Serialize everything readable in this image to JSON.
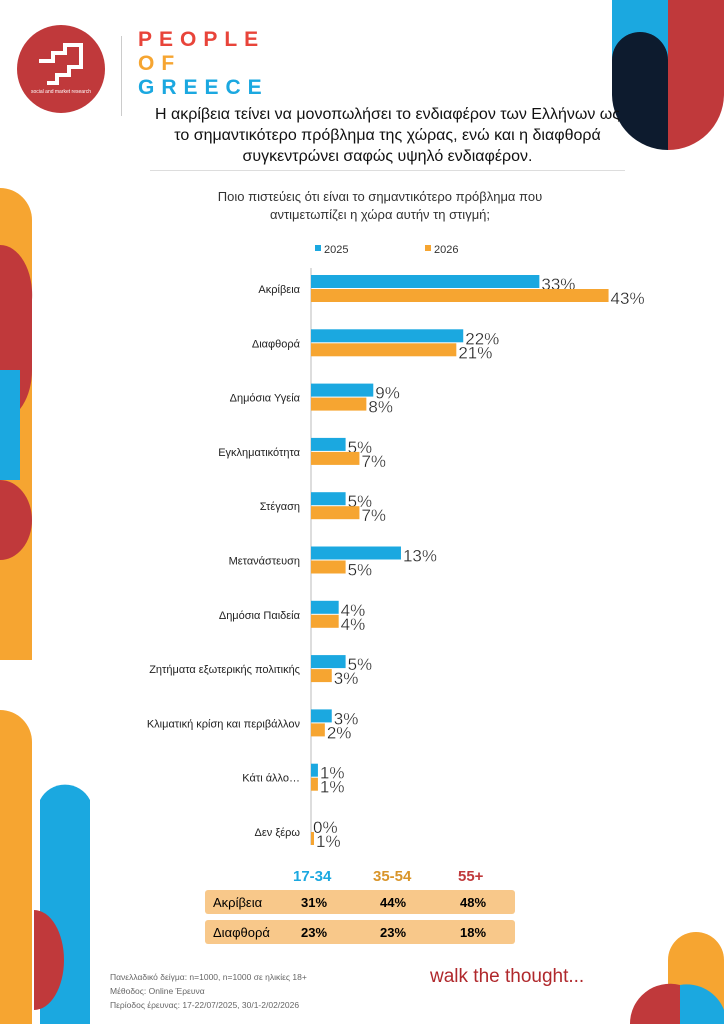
{
  "brand": {
    "name_lines": [
      "PEOPLE",
      "OF",
      "GREECE"
    ],
    "logo_subtitle": "social and market research",
    "tagline": "walk the thought..."
  },
  "headline": "Η ακρίβεια τείνει να μονοπωλήσει το ενδιαφέρον των Ελλήνων ως το σημαντικότερο πρόβλημα της χώρας, ενώ και η διαφθορά συγκεντρώνει σαφώς υψηλό ενδιαφέρον.",
  "colors": {
    "s2025": "#1ba8e0",
    "s2026": "#f6a531",
    "red": "#c0393b",
    "navy": "#0d1b2e"
  },
  "chart_data": {
    "type": "bar",
    "orientation": "horizontal",
    "title": "Ποιο πιστεύεις ότι είναι το σημαντικότερο πρόβλημα που αντιμετωπίζει η χώρα αυτήν τη στιγμή;",
    "legend_position": "top",
    "categories": [
      "Ακρίβεια",
      "Διαφθορά",
      "Δημόσια Υγεία",
      "Εγκληματικότητα",
      "Στέγαση",
      "Μετανάστευση",
      "Δημόσια Παιδεία",
      "Ζητήματα εξωτερικής πολιτικής",
      "Κλιματική κρίση και περιβάλλον",
      "Κάτι άλλο…",
      "Δεν ξέρω"
    ],
    "series": [
      {
        "name": "2025",
        "values": [
          33,
          22,
          9,
          5,
          5,
          13,
          4,
          5,
          3,
          1,
          0
        ]
      },
      {
        "name": "2026",
        "values": [
          43,
          21,
          8,
          7,
          7,
          5,
          4,
          3,
          2,
          1,
          1
        ]
      }
    ],
    "value_suffix": "%",
    "xlim": [
      0,
      45
    ],
    "grid": false
  },
  "age_table": {
    "headers": [
      "17-34",
      "35-54",
      "55+"
    ],
    "rows": [
      {
        "label": "Ακρίβεια",
        "values": [
          "31%",
          "44%",
          "48%"
        ]
      },
      {
        "label": "Διαφθορά",
        "values": [
          "23%",
          "23%",
          "18%"
        ]
      }
    ]
  },
  "footer": {
    "sample": "Πανελλαδικό δείγμα: n=1000, n=1000 σε ηλικίες 18+",
    "method": "Μέθοδος: Online Έρευνα",
    "period": "Περίοδος έρευνας: 17-22/07/2025, 30/1-2/02/2026"
  }
}
